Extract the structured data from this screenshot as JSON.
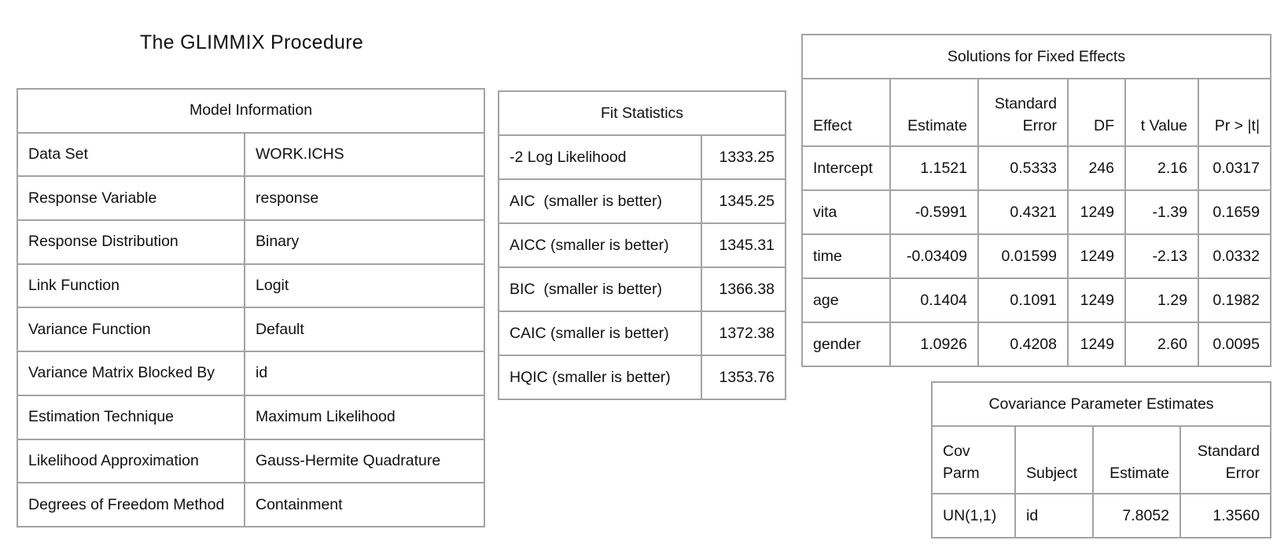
{
  "title": "The GLIMMIX Procedure",
  "model_info": {
    "caption": "Model Information",
    "rows": [
      {
        "label": "Data Set",
        "value": "WORK.ICHS"
      },
      {
        "label": "Response Variable",
        "value": "response"
      },
      {
        "label": "Response Distribution",
        "value": "Binary"
      },
      {
        "label": "Link Function",
        "value": "Logit"
      },
      {
        "label": "Variance Function",
        "value": "Default"
      },
      {
        "label": "Variance Matrix Blocked By",
        "value": "id"
      },
      {
        "label": "Estimation Technique",
        "value": "Maximum Likelihood"
      },
      {
        "label": "Likelihood Approximation",
        "value": "Gauss-Hermite Quadrature"
      },
      {
        "label": "Degrees of Freedom Method",
        "value": "Containment"
      }
    ]
  },
  "fit_stats": {
    "caption": "Fit Statistics",
    "rows": [
      {
        "label": "-2 Log Likelihood",
        "value": "1333.25"
      },
      {
        "label": "AIC  (smaller is better)",
        "value": "1345.25"
      },
      {
        "label": "AICC (smaller is better)",
        "value": "1345.31"
      },
      {
        "label": "BIC  (smaller is better)",
        "value": "1366.38"
      },
      {
        "label": "CAIC (smaller is better)",
        "value": "1372.38"
      },
      {
        "label": "HQIC (smaller is better)",
        "value": "1353.76"
      }
    ]
  },
  "fixed_effects": {
    "caption": "Solutions for Fixed Effects",
    "headers": {
      "effect": "Effect",
      "estimate": "Estimate",
      "stderr_line1": "Standard",
      "stderr_line2": "Error",
      "df": "DF",
      "tvalue": "t Value",
      "p": "Pr > |t|"
    },
    "rows": [
      {
        "effect": "Intercept",
        "estimate": "1.1521",
        "stderr": "0.5333",
        "df": "246",
        "tvalue": "2.16",
        "p": "0.0317"
      },
      {
        "effect": "vita",
        "estimate": "-0.5991",
        "stderr": "0.4321",
        "df": "1249",
        "tvalue": "-1.39",
        "p": "0.1659"
      },
      {
        "effect": "time",
        "estimate": "-0.03409",
        "stderr": "0.01599",
        "df": "1249",
        "tvalue": "-2.13",
        "p": "0.0332"
      },
      {
        "effect": "age",
        "estimate": "0.1404",
        "stderr": "0.1091",
        "df": "1249",
        "tvalue": "1.29",
        "p": "0.1982"
      },
      {
        "effect": "gender",
        "estimate": "1.0926",
        "stderr": "0.4208",
        "df": "1249",
        "tvalue": "2.60",
        "p": "0.0095"
      }
    ]
  },
  "cov_params": {
    "caption": "Covariance Parameter Estimates",
    "headers": {
      "covparm_line1": "Cov",
      "covparm_line2": "Parm",
      "subject": "Subject",
      "estimate": "Estimate",
      "stderr_line1": "Standard",
      "stderr_line2": "Error"
    },
    "rows": [
      {
        "covparm": "UN(1,1)",
        "subject": "id",
        "estimate": "7.8052",
        "stderr": "1.3560"
      }
    ]
  }
}
